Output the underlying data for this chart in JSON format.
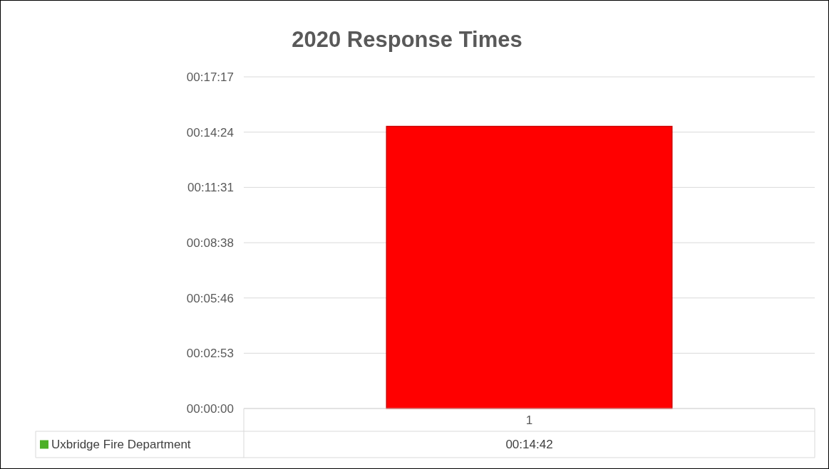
{
  "chart_data": {
    "type": "bar",
    "title": "2020 Response Times",
    "categories": [
      "1"
    ],
    "series": [
      {
        "name": "Uxbridge Fire Department",
        "color": "#4caf27",
        "colors": [
          "#ff0000"
        ],
        "values": [
          0.245
        ],
        "value_labels": [
          "00:14:42"
        ]
      }
    ],
    "ylim": [
      0,
      0.288
    ],
    "yticks": [
      {
        "value": 0,
        "label": "00:00:00"
      },
      {
        "value": 0.048,
        "label": "00:02:53"
      },
      {
        "value": 0.096,
        "label": "00:05:46"
      },
      {
        "value": 0.144,
        "label": "00:08:38"
      },
      {
        "value": 0.192,
        "label": "00:11:31"
      },
      {
        "value": 0.24,
        "label": "00:14:24"
      },
      {
        "value": 0.288,
        "label": "00:17:17"
      }
    ],
    "grid": "y",
    "legend": "bottom"
  }
}
